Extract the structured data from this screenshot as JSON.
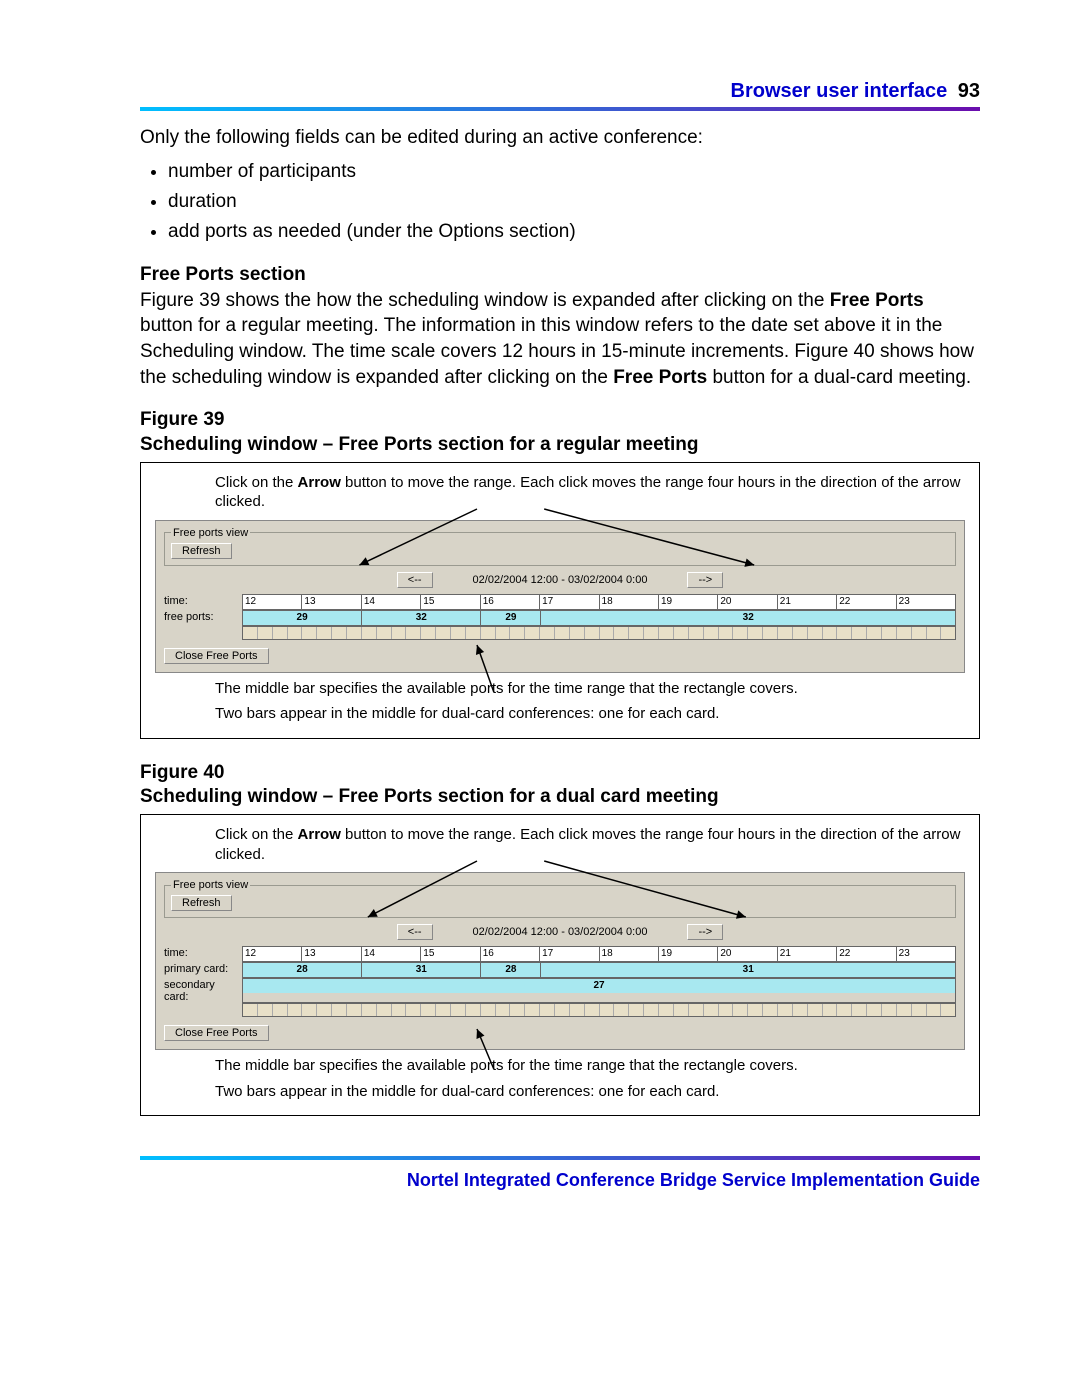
{
  "header": {
    "title": "Browser user interface",
    "page_number": "93",
    "title_color": "#0000cc",
    "rule_gradient": [
      "#00bfff",
      "#6a0dad"
    ]
  },
  "intro_line": "Only the following fields can be edited during an active conference:",
  "bullets": [
    "number of participants",
    "duration",
    "add ports as needed (under the Options section)"
  ],
  "section_heading": "Free Ports section",
  "section_para_parts": {
    "p1": "Figure 39 shows the how the scheduling window is expanded after clicking on the ",
    "b1": "Free Ports",
    "p2": " button for a regular meeting. The information in this window refers to the date set above it in the Scheduling window. The time scale covers 12 hours in 15-minute increments. Figure 40 shows how the scheduling window is expanded after clicking on the ",
    "b2": "Free Ports",
    "p3": " button for a dual-card meeting."
  },
  "fig39": {
    "label_line1": "Figure 39",
    "label_line2": "Scheduling window – Free Ports section for a regular meeting",
    "top_annot_1": "Click on the ",
    "top_annot_bold": "Arrow",
    "top_annot_2": " button to move the range. Each click moves the range four hours in the direction of the arrow clicked.",
    "caption_1": "The middle bar specifies the available ports for the time range that the rectangle covers.",
    "caption_2": "Two bars appear in the middle for dual-card conferences: one for each card."
  },
  "fig40": {
    "label_line1": "Figure 40",
    "label_line2": "Scheduling window – Free Ports section for a dual card meeting",
    "top_annot_1": "Click on the ",
    "top_annot_bold": "Arrow",
    "top_annot_2": " button to move the range. Each click moves the range four hours in the direction of the arrow clicked.",
    "caption_1": "The middle bar specifies the available ports for the time range that the rectangle covers.",
    "caption_2": "Two bars appear in the middle for dual-card conferences: one for each card."
  },
  "panel_common": {
    "legend": "Free ports view",
    "refresh": "Refresh",
    "close": "Close Free Ports",
    "left_arrow": "<--",
    "right_arrow": "-->",
    "range_text": "02/02/2004 12:00 - 03/02/2004 0:00",
    "time_label": "time:",
    "hours": [
      "12",
      "13",
      "14",
      "15",
      "16",
      "17",
      "18",
      "19",
      "20",
      "21",
      "22",
      "23"
    ],
    "tick_count": 48,
    "panel_bg": "#d8d4c8",
    "port_bg": "#a8e8f0",
    "tick_bg": "#e8e0c8"
  },
  "panel39": {
    "row_label": "free ports:",
    "segments": [
      {
        "span": 2,
        "value": "29"
      },
      {
        "span": 2,
        "value": "32"
      },
      {
        "span": 1,
        "value": "29"
      },
      {
        "span": 7,
        "value": "32"
      }
    ]
  },
  "panel40": {
    "primary_label": "primary card:",
    "secondary_label": "secondary card:",
    "primary_segments": [
      {
        "span": 2,
        "value": "28"
      },
      {
        "span": 2,
        "value": "31"
      },
      {
        "span": 1,
        "value": "28"
      },
      {
        "span": 7,
        "value": "31"
      }
    ],
    "secondary_segments": [
      {
        "span": 12,
        "value": "27"
      }
    ]
  },
  "footer": "Nortel Integrated Conference Bridge Service Implementation Guide"
}
